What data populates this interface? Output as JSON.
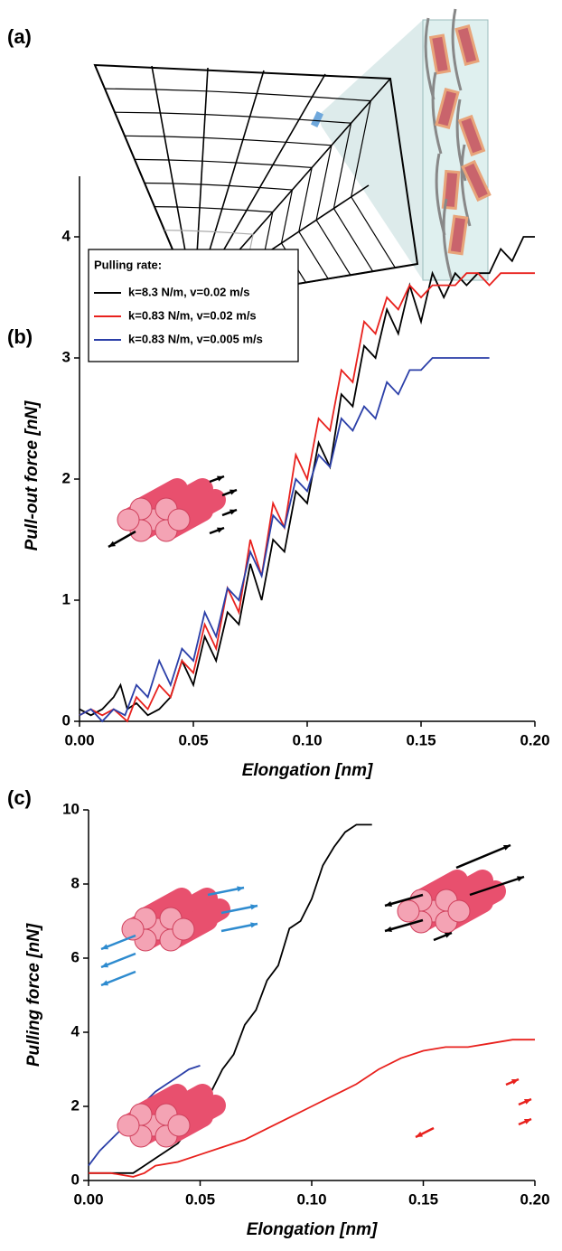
{
  "panel_labels": [
    "(a)",
    "(b)",
    "(c)"
  ],
  "chart_data": [
    {
      "type": "line",
      "x_label": "Elongation [nm]",
      "y_label": "Pull-out force [nN]",
      "xlim": [
        0,
        0.2
      ],
      "ylim": [
        0,
        4.5
      ],
      "xticks": [
        {
          "value": 0,
          "label": "0.00"
        },
        {
          "value": 0.05,
          "label": "0.05"
        },
        {
          "value": 0.1,
          "label": "0.10"
        },
        {
          "value": 0.15,
          "label": "0.15"
        },
        {
          "value": 0.2,
          "label": "0.20"
        }
      ],
      "yticks": [
        0,
        1,
        2,
        3,
        4
      ],
      "legend_title": "Pulling rate:",
      "legend": "upper left",
      "series": [
        {
          "name": "k=8.3 N/m, v=0.02 m/s",
          "color": "#000000",
          "x": [
            0,
            0.005,
            0.01,
            0.015,
            0.018,
            0.021,
            0.025,
            0.03,
            0.035,
            0.04,
            0.045,
            0.05,
            0.055,
            0.06,
            0.065,
            0.07,
            0.075,
            0.08,
            0.085,
            0.09,
            0.095,
            0.1,
            0.105,
            0.11,
            0.115,
            0.12,
            0.125,
            0.13,
            0.135,
            0.14,
            0.145,
            0.15,
            0.155,
            0.16,
            0.165,
            0.17,
            0.175,
            0.18,
            0.185,
            0.19,
            0.195,
            0.2
          ],
          "values": [
            0.1,
            0.05,
            0.1,
            0.2,
            0.3,
            0.1,
            0.15,
            0.05,
            0.1,
            0.2,
            0.5,
            0.3,
            0.7,
            0.5,
            0.9,
            0.8,
            1.3,
            1.0,
            1.5,
            1.4,
            1.9,
            1.8,
            2.3,
            2.1,
            2.7,
            2.6,
            3.1,
            3.0,
            3.4,
            3.2,
            3.6,
            3.3,
            3.7,
            3.5,
            3.7,
            3.6,
            3.7,
            3.7,
            3.9,
            3.8,
            4.0,
            4.0
          ]
        },
        {
          "name": "k=0.83 N/m, v=0.02 m/s",
          "color": "#e8211d",
          "x": [
            0,
            0.005,
            0.01,
            0.015,
            0.018,
            0.021,
            0.025,
            0.03,
            0.035,
            0.04,
            0.045,
            0.05,
            0.055,
            0.06,
            0.065,
            0.07,
            0.075,
            0.08,
            0.085,
            0.09,
            0.095,
            0.1,
            0.105,
            0.11,
            0.115,
            0.12,
            0.125,
            0.13,
            0.135,
            0.14,
            0.145,
            0.15,
            0.155,
            0.16,
            0.165,
            0.17,
            0.175,
            0.18,
            0.185,
            0.19,
            0.195,
            0.2
          ],
          "values": [
            0.05,
            0.1,
            0.05,
            0.1,
            0.05,
            0.0,
            0.2,
            0.1,
            0.3,
            0.2,
            0.5,
            0.4,
            0.8,
            0.6,
            1.1,
            0.9,
            1.5,
            1.2,
            1.8,
            1.6,
            2.2,
            2.0,
            2.5,
            2.4,
            2.9,
            2.8,
            3.3,
            3.2,
            3.5,
            3.4,
            3.6,
            3.5,
            3.6,
            3.6,
            3.6,
            3.7,
            3.7,
            3.6,
            3.7,
            3.7,
            3.7,
            3.7
          ]
        },
        {
          "name": "k=0.83 N/m, v=0.005 m/s",
          "color": "#2b3fa8",
          "x": [
            0,
            0.005,
            0.01,
            0.015,
            0.02,
            0.025,
            0.03,
            0.035,
            0.04,
            0.045,
            0.05,
            0.055,
            0.06,
            0.065,
            0.07,
            0.075,
            0.08,
            0.085,
            0.09,
            0.095,
            0.1,
            0.105,
            0.11,
            0.115,
            0.12,
            0.125,
            0.13,
            0.135,
            0.14,
            0.145,
            0.15,
            0.155,
            0.16,
            0.165,
            0.17,
            0.175,
            0.18
          ],
          "values": [
            0.05,
            0.1,
            0.0,
            0.1,
            0.05,
            0.3,
            0.2,
            0.5,
            0.3,
            0.6,
            0.5,
            0.9,
            0.7,
            1.1,
            1.0,
            1.4,
            1.2,
            1.7,
            1.6,
            2.0,
            1.9,
            2.2,
            2.1,
            2.5,
            2.4,
            2.6,
            2.5,
            2.8,
            2.7,
            2.9,
            2.9,
            3.0,
            3.0,
            3.0,
            3.0,
            3.0,
            3.0
          ]
        }
      ]
    },
    {
      "type": "line",
      "x_label": "Elongation [nm]",
      "y_label": "Pulling force [nN]",
      "xlim": [
        0,
        0.2
      ],
      "ylim": [
        0,
        10
      ],
      "xticks": [
        {
          "value": 0,
          "label": "0.00"
        },
        {
          "value": 0.05,
          "label": "0.05"
        },
        {
          "value": 0.1,
          "label": "0.10"
        },
        {
          "value": 0.15,
          "label": "0.15"
        },
        {
          "value": 0.2,
          "label": "0.20"
        }
      ],
      "yticks": [
        0,
        2,
        4,
        6,
        8,
        10
      ],
      "series": [
        {
          "color": "#000000",
          "x": [
            0,
            0.01,
            0.02,
            0.025,
            0.03,
            0.035,
            0.04,
            0.045,
            0.05,
            0.055,
            0.06,
            0.065,
            0.07,
            0.075,
            0.08,
            0.085,
            0.09,
            0.095,
            0.1,
            0.105,
            0.11,
            0.115,
            0.12,
            0.127
          ],
          "values": [
            0.2,
            0.2,
            0.2,
            0.4,
            0.6,
            0.8,
            1.0,
            1.4,
            2.0,
            2.4,
            3.0,
            3.4,
            4.2,
            4.6,
            5.4,
            5.8,
            6.8,
            7.0,
            7.6,
            8.5,
            9.0,
            9.4,
            9.6,
            9.6
          ]
        },
        {
          "color": "#e8211d",
          "x": [
            0,
            0.01,
            0.02,
            0.025,
            0.03,
            0.04,
            0.05,
            0.06,
            0.07,
            0.08,
            0.09,
            0.1,
            0.11,
            0.12,
            0.13,
            0.14,
            0.15,
            0.16,
            0.17,
            0.18,
            0.19,
            0.2
          ],
          "values": [
            0.2,
            0.2,
            0.1,
            0.2,
            0.4,
            0.5,
            0.7,
            0.9,
            1.1,
            1.4,
            1.7,
            2.0,
            2.3,
            2.6,
            3.0,
            3.3,
            3.5,
            3.6,
            3.6,
            3.7,
            3.8,
            3.8
          ]
        },
        {
          "color": "#2b3fa8",
          "x": [
            0,
            0.005,
            0.01,
            0.015,
            0.02,
            0.025,
            0.03,
            0.035,
            0.04,
            0.045,
            0.05
          ],
          "values": [
            0.4,
            0.8,
            1.1,
            1.4,
            1.7,
            2.1,
            2.4,
            2.6,
            2.8,
            3.0,
            3.1
          ]
        }
      ]
    }
  ]
}
